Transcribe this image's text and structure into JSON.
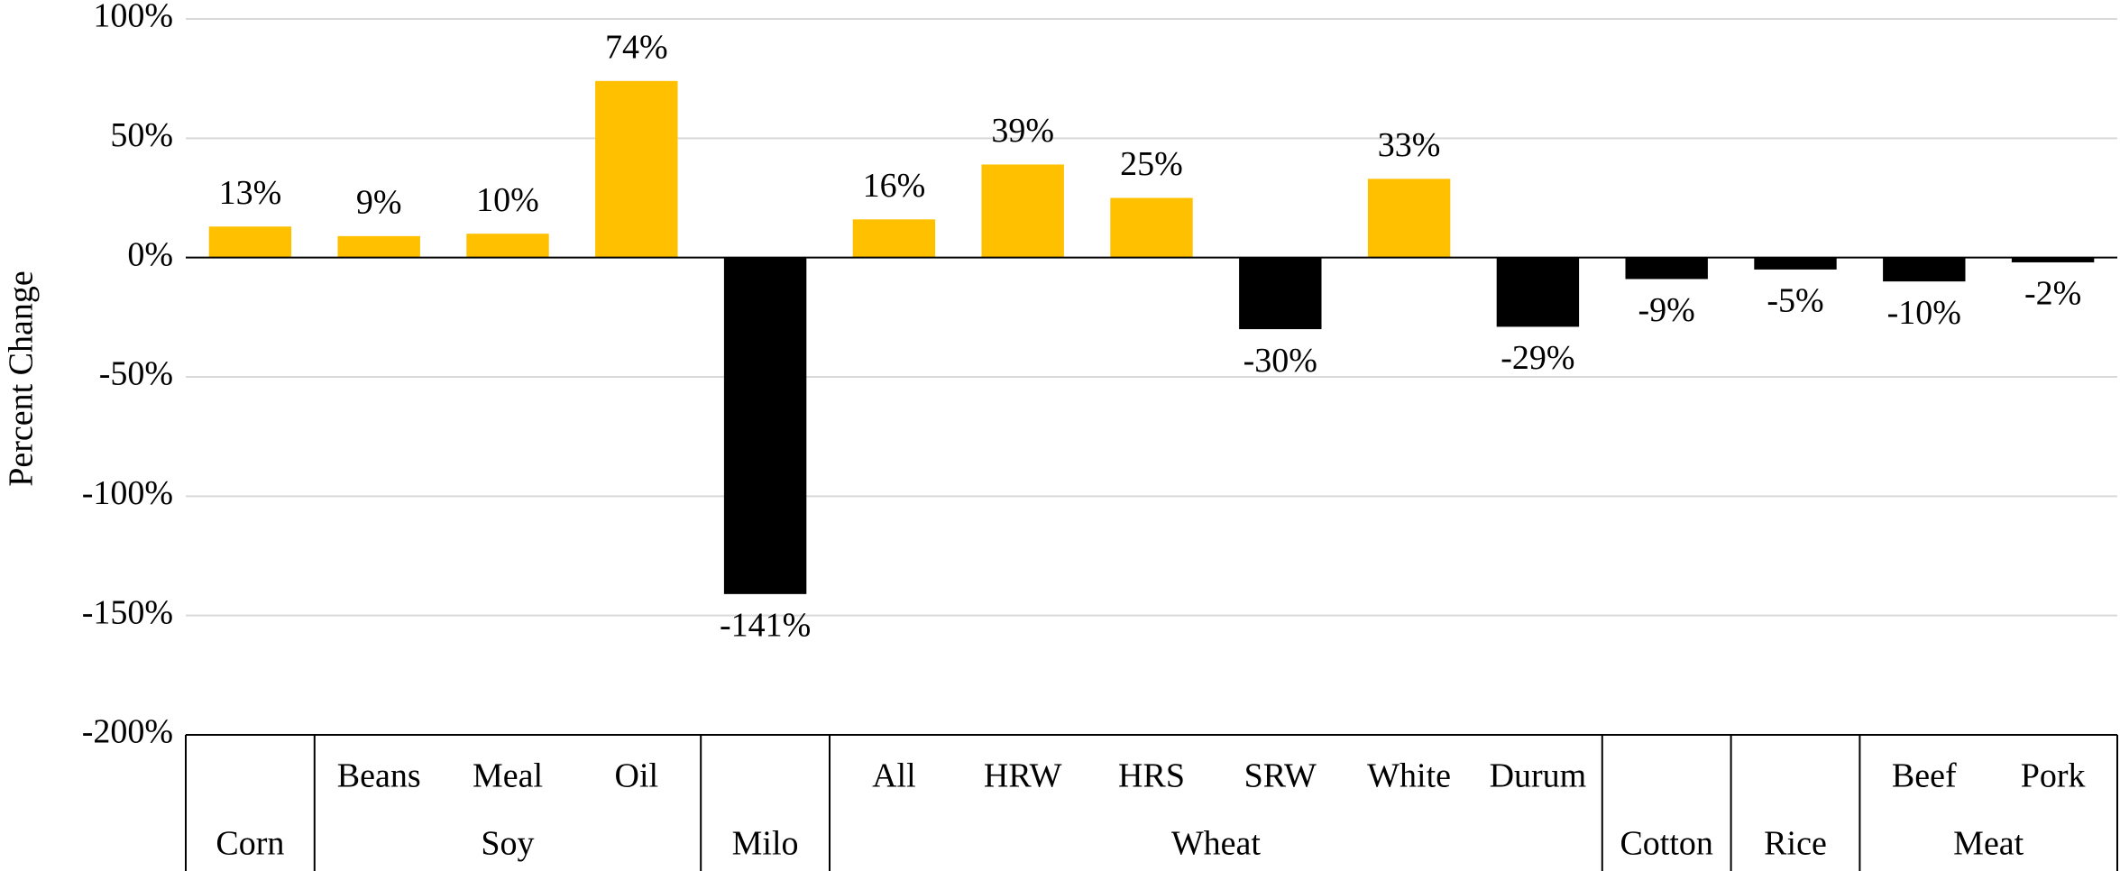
{
  "chart_data": {
    "type": "bar",
    "y_label": "Percent Change",
    "categories": [
      null,
      "Beans",
      "Meal",
      "Oil",
      null,
      "All",
      "HRW",
      "HRS",
      "SRW",
      "White",
      "Durum",
      null,
      null,
      "Beef",
      "Pork"
    ],
    "groups": [
      "Corn",
      "Soy",
      "Soy",
      "Soy",
      "Milo",
      "Wheat",
      "Wheat",
      "Wheat",
      "Wheat",
      "Wheat",
      "Wheat",
      "Cotton",
      "Rice",
      "Meat",
      "Meat"
    ],
    "values": [
      13,
      9,
      10,
      74,
      -141,
      16,
      39,
      25,
      -30,
      33,
      -29,
      -9,
      -5,
      -10,
      -2
    ],
    "value_labels": [
      "13%",
      "9%",
      "10%",
      "74%",
      "-141%",
      "16%",
      "39%",
      "25%",
      "-30%",
      "33%",
      "-29%",
      "-9%",
      "-5%",
      "-10%",
      "-2%"
    ],
    "color": "#FFC000",
    "negative_color": "#000000",
    "ylim": [
      -200,
      100
    ],
    "yticks": [
      {
        "value": -200,
        "label": "-200%"
      },
      {
        "value": -150,
        "label": "-150%"
      },
      {
        "value": -100,
        "label": "-100%"
      },
      {
        "value": -50,
        "label": "-50%"
      },
      {
        "value": 0,
        "label": "0%"
      },
      {
        "value": 50,
        "label": "50%"
      },
      {
        "value": 100,
        "label": "100%"
      }
    ],
    "grid": true
  }
}
